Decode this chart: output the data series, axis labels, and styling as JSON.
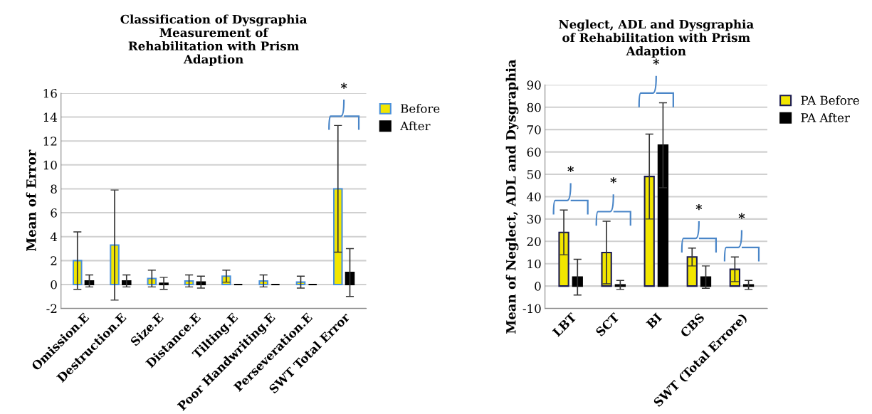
{
  "chart_data": [
    {
      "type": "bar",
      "title": "Classification of Dysgraphia\nMeasurement of\nRehabilitation with Prism\nAdaption",
      "ylabel": "Mean of Error",
      "categories": [
        "Omission.E",
        "Destruction.E",
        "Size.E",
        "Distance.E",
        "Tilting.E",
        "Poor Handwriting.E",
        "Perseveration.E",
        "SWT Total Error"
      ],
      "series": [
        {
          "name": "Before",
          "color": "#f2e600",
          "values": [
            2.0,
            3.3,
            0.5,
            0.3,
            0.7,
            0.3,
            0.2,
            8.0
          ],
          "errors": [
            2.4,
            4.6,
            0.7,
            0.5,
            0.5,
            0.5,
            0.5,
            5.3
          ]
        },
        {
          "name": "After",
          "color": "#000000",
          "values": [
            0.3,
            0.3,
            0.1,
            0.2,
            0,
            0,
            0,
            1.0
          ],
          "errors": [
            0.5,
            0.5,
            0.5,
            0.5,
            null,
            null,
            null,
            2.0
          ]
        }
      ],
      "ylim": [
        -2,
        16
      ],
      "yticks": [
        -2,
        0,
        2,
        4,
        6,
        8,
        10,
        12,
        14,
        16
      ],
      "grid": "y",
      "legend": "top right",
      "annotations": [
        "*"
      ]
    },
    {
      "type": "bar",
      "title": "Neglect, ADL and Dysgraphia\nof Rehabilitation with Prism\nAdaption",
      "ylabel": "Mean of Neglect, ADL and Dysgraphia",
      "categories": [
        "LBT",
        "SCT",
        "BI",
        "CBS",
        "SWT (Total Errore)"
      ],
      "series": [
        {
          "name": "PA Before",
          "color": "#f2e600",
          "values": [
            24,
            15,
            49,
            13,
            7.5
          ],
          "errors": [
            10,
            14,
            19,
            4,
            5.5
          ]
        },
        {
          "name": "PA After",
          "color": "#000000",
          "values": [
            4,
            0.5,
            63,
            4,
            0.5
          ],
          "errors": [
            8,
            2,
            19,
            5,
            2
          ]
        }
      ],
      "ylim": [
        -10,
        90
      ],
      "yticks": [
        -10,
        0,
        10,
        20,
        30,
        40,
        50,
        60,
        70,
        80,
        90
      ],
      "grid": "y",
      "legend": "top right",
      "annotations": [
        "*",
        "*",
        "*",
        "*",
        "*"
      ]
    }
  ]
}
